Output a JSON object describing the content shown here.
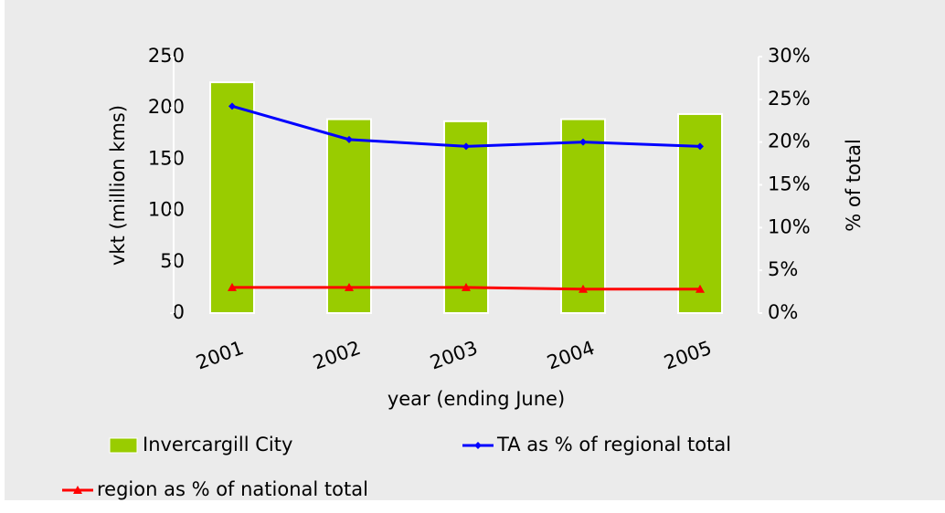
{
  "chart_data": {
    "type": "bar_line",
    "categories": [
      "2001",
      "2002",
      "2003",
      "2004",
      "2005"
    ],
    "x_label": "year (ending June)",
    "y_label": "vkt (million kms)",
    "y2_label": "% of total",
    "ylim": [
      0,
      250
    ],
    "yticks": [
      0,
      50,
      100,
      150,
      200,
      250
    ],
    "y2lim": [
      0,
      30
    ],
    "y2ticks": [
      {
        "value": 0,
        "label": "0%"
      },
      {
        "value": 5,
        "label": "5%"
      },
      {
        "value": 10,
        "label": "10%"
      },
      {
        "value": 15,
        "label": "15%"
      },
      {
        "value": 20,
        "label": "20%"
      },
      {
        "value": 25,
        "label": "25%"
      },
      {
        "value": 30,
        "label": "30%"
      }
    ],
    "series": [
      {
        "name": "Invercargill City",
        "type": "bar",
        "color": "#99cc00",
        "values": [
          225,
          189,
          187,
          189,
          194
        ]
      },
      {
        "name": "TA as % of regional total",
        "type": "line",
        "marker": "diamond",
        "axis": "y2",
        "color": "#0000ff",
        "values": [
          24.2,
          20.3,
          19.5,
          20.0,
          19.5
        ]
      },
      {
        "name": "region as % of national total",
        "type": "line",
        "marker": "triangle",
        "axis": "y2",
        "color": "#ff0000",
        "values": [
          3.0,
          3.0,
          3.0,
          2.8,
          2.8
        ]
      }
    ]
  }
}
